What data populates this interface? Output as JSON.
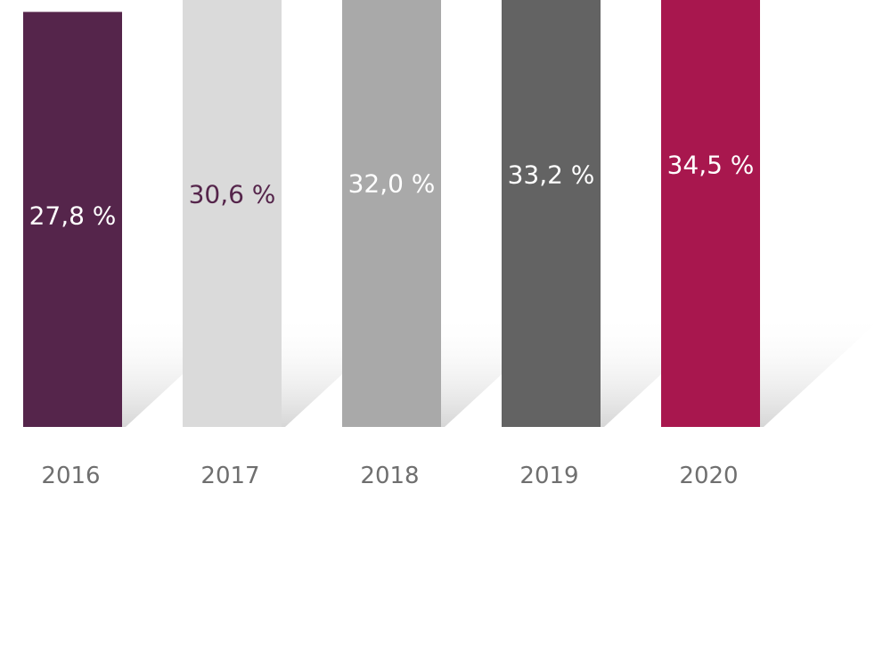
{
  "chart_data": {
    "type": "bar",
    "title": "",
    "xlabel": "",
    "ylabel": "",
    "grid": false,
    "legend": "none",
    "categories": [
      "2016",
      "2017",
      "2018",
      "2019",
      "2020"
    ],
    "values": [
      27.8,
      30.6,
      32.0,
      33.2,
      34.5
    ],
    "value_labels": [
      "27,8 %",
      "30,6 %",
      "32,0 %",
      "33,2 %",
      "34,5 %"
    ],
    "unit": "%",
    "bar_colors": [
      "#55254b",
      "#dadada",
      "#a9a9a9",
      "#636363",
      "#a8174e"
    ],
    "label_colors": [
      "#ffffff",
      "#55254b",
      "#ffffff",
      "#ffffff",
      "#ffffff"
    ],
    "tick_color": "#6f6f6f"
  }
}
